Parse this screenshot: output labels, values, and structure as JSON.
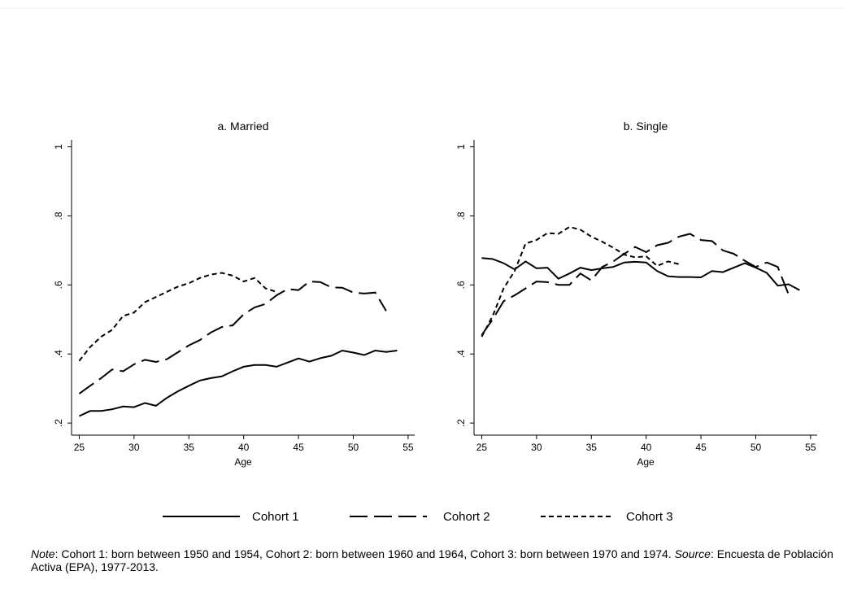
{
  "chart_data": [
    {
      "type": "line",
      "title": "a. Married",
      "x_label": "Age",
      "x": [
        25,
        26,
        27,
        28,
        29,
        30,
        31,
        32,
        33,
        34,
        35,
        36,
        37,
        38,
        39,
        40,
        41,
        42,
        43,
        44,
        45,
        46,
        47,
        48,
        49,
        50,
        51,
        52,
        53,
        54
      ],
      "xlim": [
        24.3,
        55.6
      ],
      "xticks": [
        25,
        30,
        35,
        40,
        45,
        50,
        55
      ],
      "ylim": [
        0.165,
        1.02
      ],
      "yticks": [
        {
          "value": 0.2,
          "label": ".2"
        },
        {
          "value": 0.4,
          "label": ".4"
        },
        {
          "value": 0.6,
          "label": ".6"
        },
        {
          "value": 0.8,
          "label": ".8"
        },
        1
      ],
      "series": [
        {
          "name": "Cohort 1",
          "color": "#000000",
          "dash": "solid",
          "values": [
            0.22,
            0.235,
            0.235,
            0.24,
            0.248,
            0.246,
            0.258,
            0.25,
            0.273,
            0.292,
            0.308,
            0.323,
            0.33,
            0.335,
            0.35,
            0.363,
            0.368,
            0.368,
            0.363,
            0.375,
            0.387,
            0.378,
            0.388,
            0.395,
            0.41,
            0.404,
            0.397,
            0.41,
            0.406,
            0.41
          ]
        },
        {
          "name": "Cohort 2",
          "color": "#000000",
          "dash": "long",
          "values": [
            0.285,
            0.308,
            0.33,
            0.355,
            0.35,
            0.37,
            0.383,
            0.377,
            0.385,
            0.405,
            0.425,
            0.44,
            0.462,
            0.478,
            0.483,
            0.515,
            0.535,
            0.545,
            0.57,
            0.588,
            0.585,
            0.61,
            0.608,
            0.593,
            0.592,
            0.578,
            0.575,
            0.578,
            0.525,
            null
          ]
        },
        {
          "name": "Cohort 3",
          "color": "#000000",
          "dash": "short",
          "values": [
            0.38,
            0.42,
            0.45,
            0.47,
            0.51,
            0.52,
            0.55,
            0.565,
            0.58,
            0.595,
            0.605,
            0.62,
            0.63,
            0.635,
            0.627,
            0.61,
            0.62,
            0.59,
            0.58,
            null,
            null,
            null,
            null,
            null,
            null,
            null,
            null,
            null,
            null,
            null
          ]
        }
      ]
    },
    {
      "type": "line",
      "title": "b. Single",
      "x_label": "Age",
      "x": [
        25,
        26,
        27,
        28,
        29,
        30,
        31,
        32,
        33,
        34,
        35,
        36,
        37,
        38,
        39,
        40,
        41,
        42,
        43,
        44,
        45,
        46,
        47,
        48,
        49,
        50,
        51,
        52,
        53,
        54
      ],
      "xlim": [
        24.3,
        55.6
      ],
      "xticks": [
        25,
        30,
        35,
        40,
        45,
        50,
        55
      ],
      "ylim": [
        0.165,
        1.02
      ],
      "yticks": [
        {
          "value": 0.2,
          "label": ".2"
        },
        {
          "value": 0.4,
          "label": ".4"
        },
        {
          "value": 0.6,
          "label": ".6"
        },
        {
          "value": 0.8,
          "label": ".8"
        },
        1
      ],
      "series": [
        {
          "color": "#000000",
          "dash": "solid",
          "values": [
            0.678,
            0.675,
            0.663,
            0.645,
            0.668,
            0.648,
            0.65,
            0.618,
            0.633,
            0.65,
            0.643,
            0.648,
            0.652,
            0.665,
            0.667,
            0.665,
            0.64,
            0.625,
            0.623,
            0.623,
            0.622,
            0.64,
            0.637,
            0.65,
            0.663,
            0.65,
            0.635,
            0.598,
            0.602,
            0.585
          ]
        },
        {
          "color": "#000000",
          "dash": "long",
          "values": [
            0.455,
            0.5,
            0.553,
            0.57,
            0.59,
            0.61,
            0.608,
            0.6,
            0.6,
            0.633,
            0.613,
            0.652,
            0.668,
            0.69,
            0.71,
            0.695,
            0.715,
            0.722,
            0.74,
            0.748,
            0.73,
            0.727,
            0.7,
            0.69,
            0.67,
            0.652,
            0.665,
            0.652,
            0.572,
            null
          ]
        },
        {
          "color": "#000000",
          "dash": "short",
          "values": [
            0.45,
            0.51,
            0.59,
            0.64,
            0.72,
            0.73,
            0.75,
            0.748,
            0.768,
            0.76,
            0.74,
            0.725,
            0.708,
            0.688,
            0.68,
            0.683,
            0.655,
            0.668,
            0.66,
            null,
            null,
            null,
            null,
            null,
            null,
            null,
            null,
            null,
            null,
            null
          ]
        }
      ]
    }
  ],
  "note": {
    "label": "Note",
    "text": ": Cohort 1: born between 1950 and 1954, Cohort 2: born between 1960 and 1964, Cohort 3: born between 1970 and 1974. "
  },
  "source": {
    "label": "Source",
    "text": ": Encuesta de Población Activa (EPA), 1977-2013."
  }
}
